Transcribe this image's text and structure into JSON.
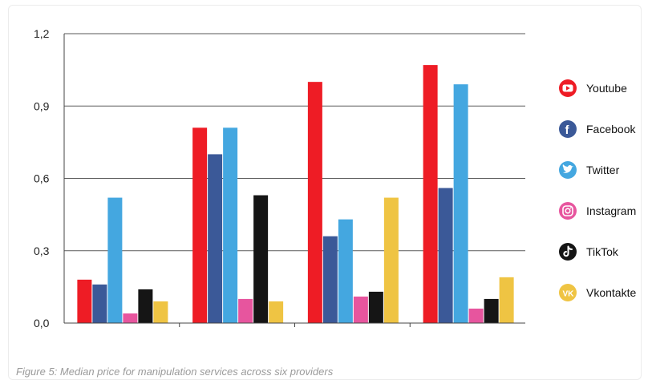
{
  "caption": "Figure 5: Median price for manipulation services across six providers",
  "chart_data": {
    "type": "bar",
    "categories": [
      "",
      "",
      "",
      ""
    ],
    "ylim": [
      0,
      1.2
    ],
    "yticks": [
      "0,0",
      "0,3",
      "0,6",
      "0,9",
      "1,2"
    ],
    "ytick_values": [
      0,
      0.3,
      0.6,
      0.9,
      1.2
    ],
    "grid": true,
    "legend_position": "right",
    "series": [
      {
        "name": "Youtube",
        "color": "#ee1c25",
        "icon": "youtube-icon",
        "values": [
          0.18,
          0.81,
          1.0,
          1.07
        ]
      },
      {
        "name": "Facebook",
        "color": "#3b5998",
        "icon": "facebook-icon",
        "values": [
          0.16,
          0.7,
          0.36,
          0.56
        ]
      },
      {
        "name": "Twitter",
        "color": "#44a7e0",
        "icon": "twitter-icon",
        "values": [
          0.52,
          0.81,
          0.43,
          0.99
        ]
      },
      {
        "name": "Instagram",
        "color": "#e7559e",
        "icon": "instagram-icon",
        "values": [
          0.04,
          0.1,
          0.11,
          0.06
        ]
      },
      {
        "name": "TikTok",
        "color": "#151515",
        "icon": "tiktok-icon",
        "values": [
          0.14,
          0.53,
          0.13,
          0.1
        ]
      },
      {
        "name": "Vkontakte",
        "color": "#efc443",
        "icon": "vkontakte-icon",
        "values": [
          0.09,
          0.09,
          0.52,
          0.19
        ]
      }
    ]
  }
}
